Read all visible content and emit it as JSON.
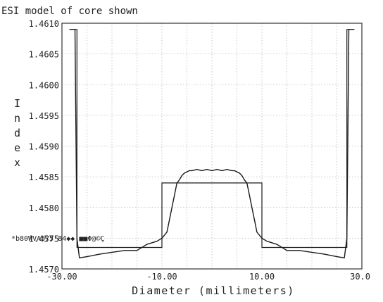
{
  "chart_data": {
    "type": "line",
    "title": "ESI model of core shown",
    "xlabel": "Diameter (millimeters)",
    "ylabel": "Index",
    "xlim": [
      -30.0,
      30.0
    ],
    "ylim": [
      1.457,
      1.461
    ],
    "grid": true,
    "x_tick_labels": [
      {
        "value": -30,
        "label": "-30.00"
      },
      {
        "value": -10,
        "label": "-10.00"
      },
      {
        "value": 10,
        "label": "10.00"
      },
      {
        "value": 30,
        "label": "30.0"
      }
    ],
    "y_tick_labels": [
      {
        "value": 1.461,
        "label": "1.4610"
      },
      {
        "value": 1.4605,
        "label": "1.4605"
      },
      {
        "value": 1.46,
        "label": "1.4600"
      },
      {
        "value": 1.4595,
        "label": "1.4595"
      },
      {
        "value": 1.459,
        "label": "1.4590"
      },
      {
        "value": 1.4585,
        "label": "1.4585"
      },
      {
        "value": 1.458,
        "label": "1.4580"
      },
      {
        "value": 1.4575,
        "label": "1.4575"
      },
      {
        "value": 1.457,
        "label": "1.4570"
      }
    ],
    "annotation": "*b80WVA575 84◆◆ ■■Φ@©Ç",
    "series": [
      {
        "style": "step",
        "x": [
          -28.5,
          -27.0,
          -27.0,
          -20.0,
          -20.0,
          -10.0,
          -10.0,
          10.0,
          10.0,
          20.0,
          20.0,
          27.0,
          27.0,
          28.5
        ],
        "y": [
          1.4609,
          1.4609,
          1.45735,
          1.45735,
          1.45735,
          1.45735,
          1.4584,
          1.4584,
          1.45735,
          1.45735,
          1.45735,
          1.45735,
          1.4609,
          1.4609
        ]
      },
      {
        "style": "curve",
        "x": [
          -28.5,
          -27.4,
          -27.0,
          -26.5,
          -25.0,
          -22.5,
          -20.0,
          -17.5,
          -15.0,
          -13.0,
          -11.0,
          -10.0,
          -9.0,
          -8.5,
          -8.0,
          -7.5,
          -7.0,
          -6.5,
          -6.0,
          -5.5,
          -5.0,
          -4.5,
          -4.0,
          -3.0,
          -2.0,
          -1.0,
          0.0,
          1.0,
          2.0,
          3.0,
          4.0,
          4.5,
          5.0,
          5.5,
          6.0,
          6.5,
          7.0,
          7.5,
          8.0,
          8.5,
          9.0,
          10.0,
          11.0,
          13.0,
          15.0,
          17.5,
          20.0,
          22.5,
          25.0,
          26.5,
          27.0,
          27.4,
          28.5
        ],
        "y": [
          1.4609,
          1.4609,
          1.4575,
          1.45718,
          1.4572,
          1.45724,
          1.45727,
          1.4573,
          1.4573,
          1.4574,
          1.45745,
          1.4575,
          1.4576,
          1.4578,
          1.458,
          1.4582,
          1.4584,
          1.45845,
          1.45852,
          1.45856,
          1.45858,
          1.4586,
          1.4586,
          1.45862,
          1.4586,
          1.45862,
          1.4586,
          1.45862,
          1.4586,
          1.45862,
          1.4586,
          1.4586,
          1.45858,
          1.45856,
          1.45852,
          1.45845,
          1.4584,
          1.4582,
          1.458,
          1.4578,
          1.4576,
          1.4575,
          1.45745,
          1.4574,
          1.4573,
          1.4573,
          1.45727,
          1.45724,
          1.4572,
          1.45718,
          1.4575,
          1.4609,
          1.4609
        ]
      }
    ]
  }
}
